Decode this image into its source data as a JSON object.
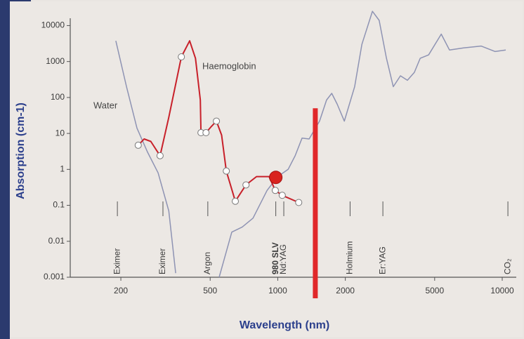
{
  "chart_data": {
    "type": "line",
    "xlabel": "Wavelength (nm)",
    "ylabel": "Absorption (cm-1)",
    "xscale": "log",
    "yscale": "log",
    "xlim": [
      119,
      11550
    ],
    "ylim": [
      0.001,
      30000
    ],
    "xticks": [
      200,
      500,
      1000,
      2000,
      5000,
      10000
    ],
    "yticks": [
      0.001,
      0.01,
      0.1,
      1,
      10,
      100,
      1000,
      10000
    ],
    "series": [
      {
        "name": "Water",
        "color": "#8e93b3",
        "x": [
          190,
          212,
          236,
          263,
          293,
          327,
          351,
          355,
          548,
          624,
          695,
          776,
          896,
          1000,
          1112,
          1195,
          1283,
          1380,
          1535,
          1650,
          1740,
          1840,
          1980,
          2200,
          2370,
          2640,
          2830,
          3050,
          3270,
          3520,
          3780,
          4060,
          4310,
          4700,
          5350,
          5820,
          6730,
          8050,
          9300,
          10370
        ],
        "values": [
          3760,
          200,
          14,
          3,
          0.8,
          0.07,
          0.0013,
          null,
          0.001,
          0.018,
          0.025,
          0.044,
          0.26,
          0.63,
          1,
          2.4,
          7.4,
          7,
          22,
          85,
          130,
          65,
          22,
          200,
          3000,
          25000,
          14000,
          1230,
          200,
          400,
          300,
          500,
          1230,
          1530,
          5800,
          2100,
          2400,
          2700,
          1900,
          2100
        ]
      },
      {
        "name": "Haemoglobin",
        "color": "#c8202a",
        "x": [
          239,
          254,
          272,
          299,
          327,
          372,
          405,
          430,
          452,
          455,
          479,
          503,
          533,
          562,
          590,
          647,
          722,
          804,
          915,
          975,
          1047,
          1240
        ],
        "values": [
          4.7,
          7,
          6,
          2.4,
          28,
          1350,
          3760,
          1230,
          85,
          10.5,
          10.5,
          15,
          22,
          9,
          0.9,
          0.13,
          0.37,
          0.63,
          0.63,
          0.26,
          0.19,
          0.12
        ],
        "marked": [
          true,
          false,
          false,
          true,
          false,
          true,
          false,
          false,
          false,
          true,
          true,
          false,
          true,
          false,
          true,
          true,
          true,
          false,
          false,
          true,
          true,
          true
        ]
      }
    ],
    "highlight": {
      "x": 980,
      "y": 0.6,
      "color": "#d9231f"
    },
    "cutoff": {
      "x": 1470,
      "y": 50,
      "color": "#e0282a"
    },
    "lasers": [
      {
        "label": "Eximer",
        "x": 193
      },
      {
        "label": "Eximer",
        "x": 308
      },
      {
        "label": "Argon",
        "x": 488
      },
      {
        "label": "980 SLV",
        "x": 980,
        "bold": true
      },
      {
        "label": "Nd:YAG",
        "x": 1064
      },
      {
        "label": "Holmium",
        "x": 2100
      },
      {
        "label": "Er:YAG",
        "x": 2940
      },
      {
        "label": "CO₂",
        "x": 10600
      }
    ]
  }
}
